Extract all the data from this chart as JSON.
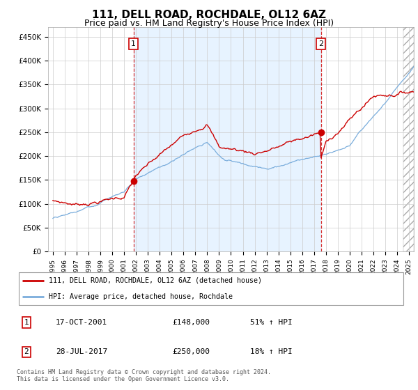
{
  "title": "111, DELL ROAD, ROCHDALE, OL12 6AZ",
  "subtitle": "Price paid vs. HM Land Registry's House Price Index (HPI)",
  "title_fontsize": 11,
  "subtitle_fontsize": 9,
  "ylabel_ticks": [
    "£0",
    "£50K",
    "£100K",
    "£150K",
    "£200K",
    "£250K",
    "£300K",
    "£350K",
    "£400K",
    "£450K"
  ],
  "ytick_values": [
    0,
    50000,
    100000,
    150000,
    200000,
    250000,
    300000,
    350000,
    400000,
    450000
  ],
  "ylim": [
    0,
    470000
  ],
  "xlim_start": 1994.6,
  "xlim_end": 2025.4,
  "red_color": "#cc0000",
  "blue_color": "#7aaddc",
  "shade_color": "#ddeeff",
  "dashed_color": "#cc0000",
  "marker1_x": 2001.79,
  "marker1_y": 148000,
  "marker1_label": "1",
  "marker2_x": 2017.57,
  "marker2_y": 250000,
  "marker2_label": "2",
  "legend_entry1": "111, DELL ROAD, ROCHDALE, OL12 6AZ (detached house)",
  "legend_entry2": "HPI: Average price, detached house, Rochdale",
  "table_row1": [
    "1",
    "17-OCT-2001",
    "£148,000",
    "51% ↑ HPI"
  ],
  "table_row2": [
    "2",
    "28-JUL-2017",
    "£250,000",
    "18% ↑ HPI"
  ],
  "footnote": "Contains HM Land Registry data © Crown copyright and database right 2024.\nThis data is licensed under the Open Government Licence v3.0.",
  "background_color": "#ffffff",
  "grid_color": "#cccccc",
  "hatch_start": 2024.5
}
